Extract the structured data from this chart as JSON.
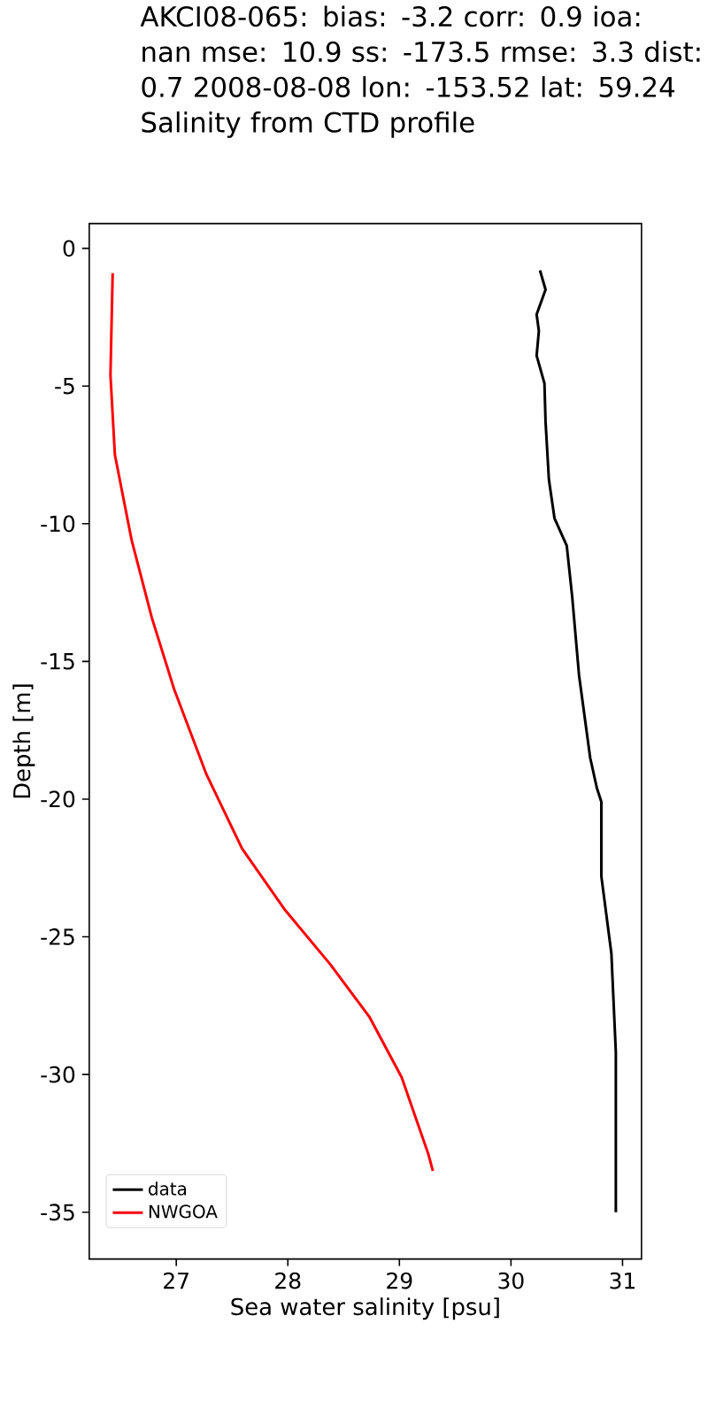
{
  "chart_data": {
    "type": "line",
    "title": "AKCI08-065: bias: -3.2  corr: 0.9  ioa: nan  mse: 10.9  ss: -173.5  rmse: 3.3  dist: 0.7 2008-08-08 lon: -153.52 lat: 59.24",
    "subtitle": "Salinity from CTD profile",
    "xlabel": "Sea water salinity [psu]",
    "ylabel": "Depth [m]",
    "series": [
      {
        "name": "data",
        "color": "#000000",
        "x": [
          30.26,
          30.31,
          30.23,
          30.25,
          30.23,
          30.3,
          30.31,
          30.34,
          30.39,
          30.5,
          30.55,
          30.61,
          30.71,
          30.77,
          30.81,
          30.81,
          30.9,
          30.94,
          30.94
        ],
        "values": [
          -0.8,
          -1.5,
          -2.4,
          -3.0,
          -3.9,
          -4.9,
          -6.3,
          -8.4,
          -9.8,
          -10.8,
          -12.7,
          -15.5,
          -18.5,
          -19.6,
          -20.1,
          -22.8,
          -25.6,
          -29.2,
          -35.0
        ]
      },
      {
        "name": "NWGOA",
        "color": "#ff0000",
        "x": [
          26.43,
          26.41,
          26.45,
          26.6,
          26.78,
          26.98,
          27.27,
          27.59,
          27.97,
          28.38,
          28.73,
          29.02,
          29.26,
          29.3
        ],
        "values": [
          -0.9,
          -4.6,
          -7.5,
          -10.6,
          -13.4,
          -16.0,
          -19.1,
          -21.8,
          -24.0,
          -26.0,
          -27.9,
          -30.1,
          -32.9,
          -33.5
        ]
      }
    ],
    "xlim": [
      26.22,
      31.17
    ],
    "ylim": [
      -36.7,
      0.9
    ],
    "xticks": [
      27,
      28,
      29,
      30,
      31
    ],
    "yticks": [
      0,
      -5,
      -10,
      -15,
      -20,
      -25,
      -30,
      -35
    ],
    "legend": "bottom left",
    "grid": false,
    "marker": "none",
    "line_style": "solid"
  }
}
